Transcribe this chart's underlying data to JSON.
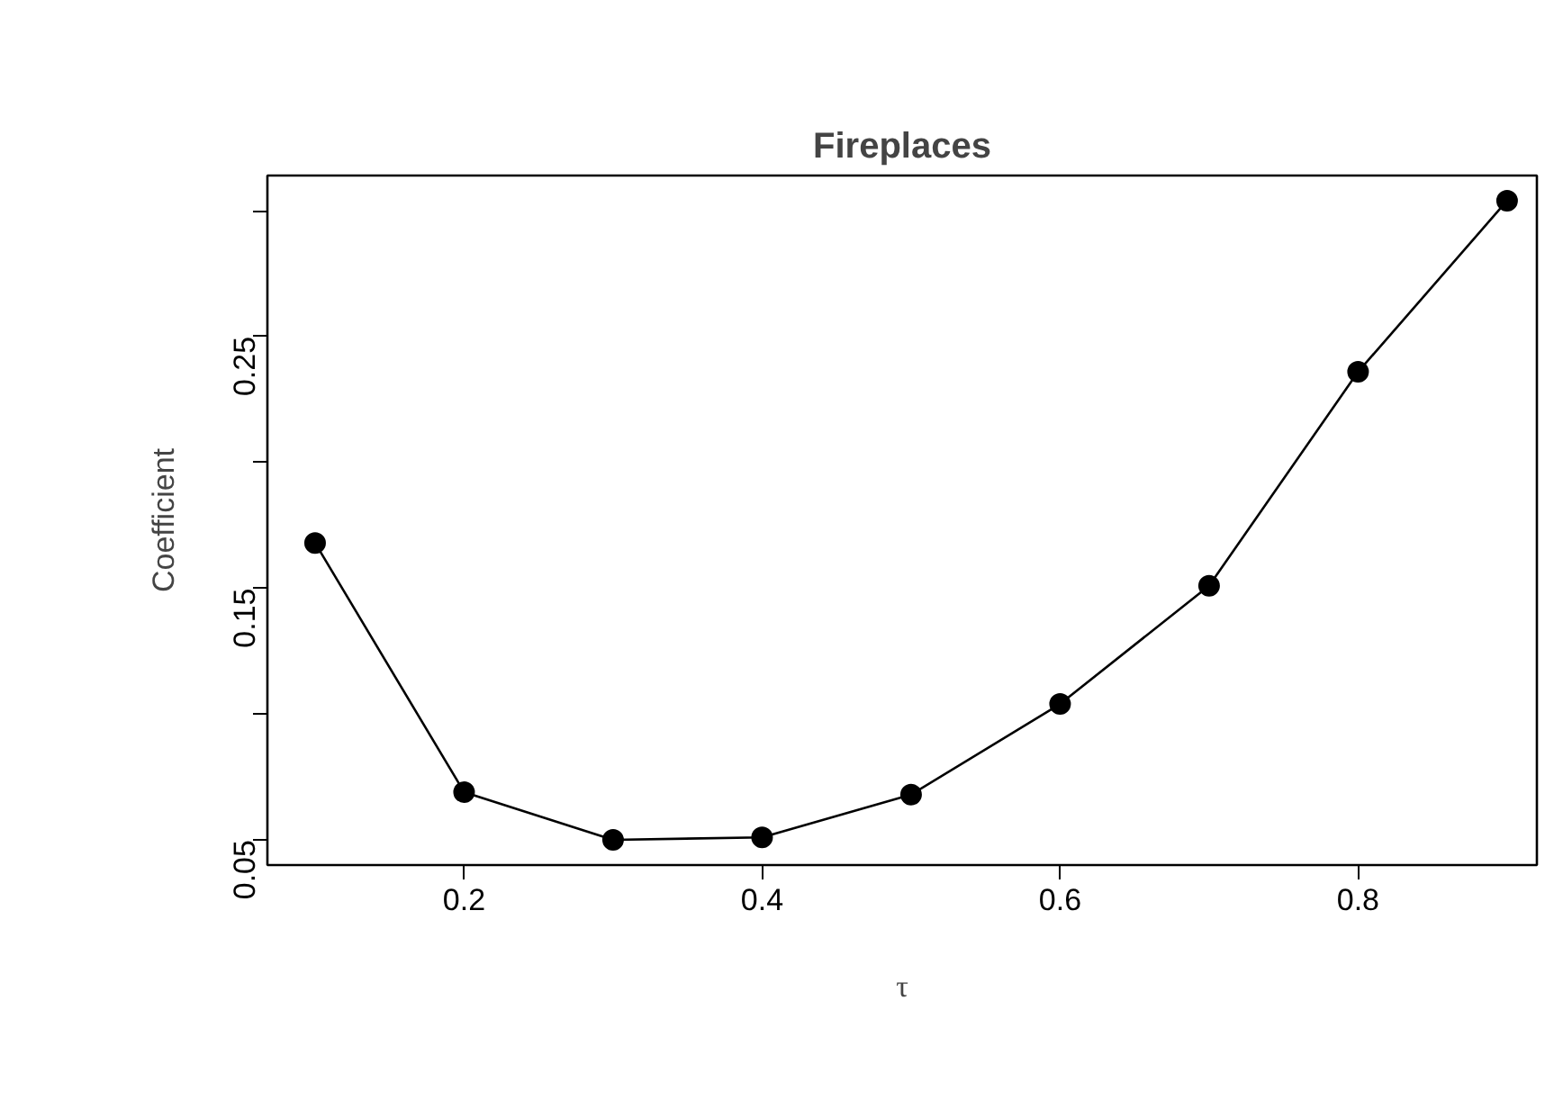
{
  "chart_data": {
    "type": "line",
    "title": "Fireplaces",
    "xlabel": "τ",
    "ylabel": "Coefficient",
    "x": [
      0.1,
      0.2,
      0.3,
      0.4,
      0.5,
      0.6,
      0.7,
      0.8,
      0.9
    ],
    "series": [
      {
        "color": "#000000",
        "values": [
          0.168,
          0.069,
          0.05,
          0.051,
          0.068,
          0.104,
          0.151,
          0.236,
          0.304
        ]
      }
    ],
    "xlim": [
      0.068,
      0.92
    ],
    "ylim": [
      0.04,
      0.314
    ],
    "xticks": [
      0.2,
      0.4,
      0.6,
      0.8
    ],
    "yticks": [
      0.05,
      {
        "value": 0.1,
        "label": null
      },
      0.15,
      {
        "value": 0.2,
        "label": null
      },
      0.25,
      {
        "value": 0.3,
        "label": null
      }
    ],
    "marker": "circle"
  }
}
